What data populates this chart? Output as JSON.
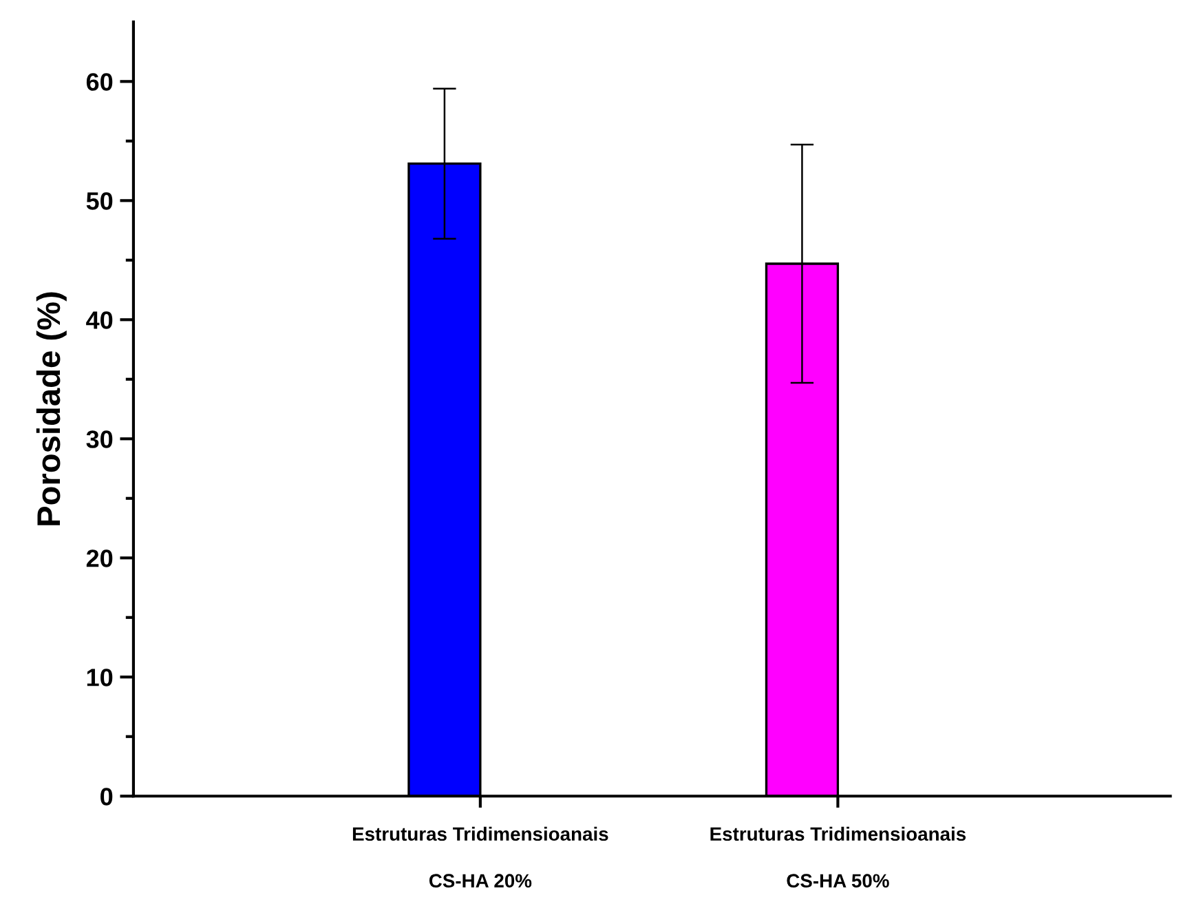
{
  "chart_data": {
    "type": "bar",
    "ylabel": "Porosidade (%)",
    "categories": [
      "Estruturas Tridimensioanais\n\nCS-HA 20%",
      "Estruturas Tridimensioanais\n\nCS-HA 50%"
    ],
    "values": [
      53.1,
      44.7
    ],
    "colors": [
      "#0000ff",
      "#ff00ff"
    ],
    "errors": [
      [
        46.8,
        59.4
      ],
      [
        34.7,
        54.7
      ]
    ],
    "ylim": [
      0,
      65
    ],
    "yticks": [
      0,
      {
        "value": 5,
        "label": null
      },
      10,
      {
        "value": 15,
        "label": null
      },
      20,
      {
        "value": 25,
        "label": null
      },
      30,
      {
        "value": 35,
        "label": null
      },
      40,
      {
        "value": 45,
        "label": null
      },
      50,
      {
        "value": 55,
        "label": null
      },
      60
    ],
    "grid": false,
    "legend": false
  }
}
